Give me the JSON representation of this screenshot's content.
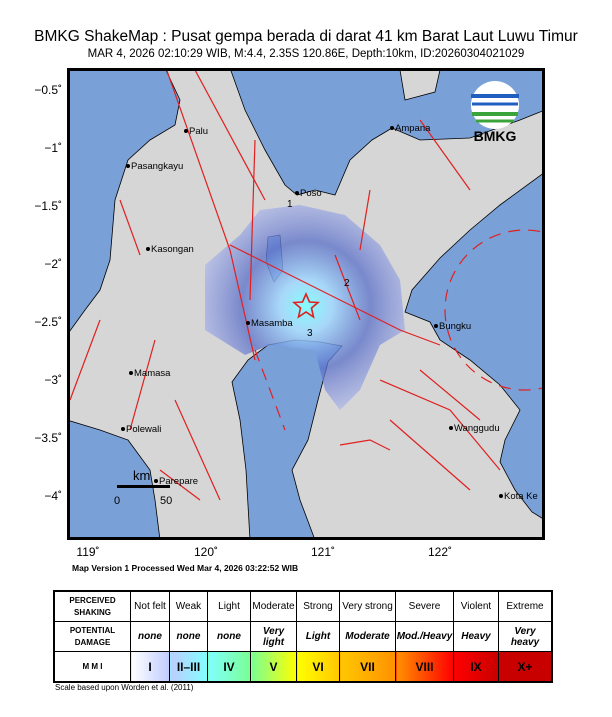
{
  "header": {
    "title": "BMKG ShakeMap : Pusat gempa berada di darat 41 km Barat Laut Luwu Timur",
    "subtitle": "MAR 4, 2026 02:10:29 WIB, M:4.4, 2.35S 120.86E, Depth:10km, ID:20260304021029"
  },
  "map": {
    "logo_text": "BMKG",
    "lat_labels": [
      "−0.5˚",
      "−1˚",
      "−1.5˚",
      "−2˚",
      "−2.5˚",
      "−3˚",
      "−3.5˚",
      "−4˚"
    ],
    "lon_labels": [
      "119˚",
      "120˚",
      "121˚",
      "122˚"
    ],
    "cities": [
      "Palu",
      "Pasangkayu",
      "Kasongan",
      "Ampana",
      "Poso",
      "Masamba",
      "Bungku",
      "Mamasa",
      "Polewali",
      "Wanggudu",
      "Parepare",
      "Kota Ke"
    ],
    "contour_labels": [
      "1",
      "2",
      "3"
    ],
    "scale": {
      "unit": "km",
      "start": "0",
      "end": "50"
    },
    "colors": {
      "sea": "#7aa0d8",
      "land": "#d9d9d9",
      "fault": "#e02020",
      "epicenter": "#e02020"
    }
  },
  "footer": {
    "processed": "Map Version 1 Processed Wed Mar  4, 2026 03:22:52 WIB",
    "scale_note": "Scale based upon Worden et al. (2011)"
  },
  "legend": {
    "row_headers": [
      "PERCEIVED SHAKING",
      "POTENTIAL DAMAGE",
      "M M I"
    ],
    "shaking": [
      "Not felt",
      "Weak",
      "Light",
      "Moderate",
      "Strong",
      "Very strong",
      "Severe",
      "Violent",
      "Extreme"
    ],
    "damage": [
      "none",
      "none",
      "none",
      "Very light",
      "Light",
      "Moderate",
      "Mod./Heavy",
      "Heavy",
      "Very heavy"
    ],
    "mmi": [
      "I",
      "II–III",
      "IV",
      "V",
      "VI",
      "VII",
      "VIII",
      "IX",
      "X+"
    ],
    "mmi_colors": [
      "#ffffff",
      "#bfccff",
      "#80ffff",
      "#7aff93",
      "#ffff00",
      "#ffc800",
      "#ff9100",
      "#ff0000",
      "#c80000"
    ]
  }
}
